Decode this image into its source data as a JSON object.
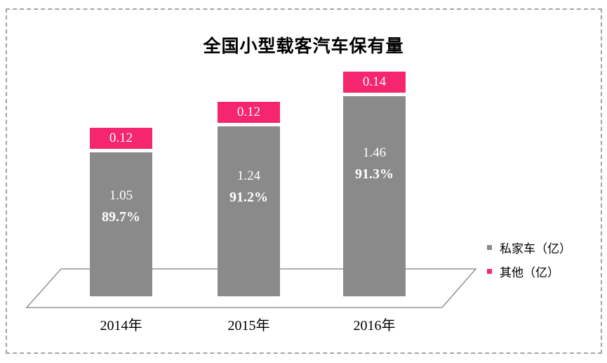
{
  "page": {
    "background": "#ffffff",
    "border_color": "#a3a3a3",
    "floor_line_color": "#7f7f7f"
  },
  "chart_data": {
    "type": "bar",
    "stacked": true,
    "style": "3d-floor",
    "title": "全国小型载客汽车保有量",
    "categories": [
      "2014年",
      "2015年",
      "2016年"
    ],
    "series": [
      {
        "name": "私家车（亿）",
        "color": "#8A8A8A",
        "values": [
          1.05,
          1.24,
          1.46
        ],
        "value_labels": [
          "1.05",
          "1.24",
          "1.46"
        ],
        "percent_labels": [
          "89.7%",
          "91.2%",
          "91.3%"
        ]
      },
      {
        "name": "其他（亿）",
        "color": "#F5266E",
        "values": [
          0.12,
          0.12,
          0.14
        ],
        "value_labels": [
          "0.12",
          "0.12",
          "0.14"
        ]
      }
    ],
    "legend_position": "right",
    "grid": false,
    "axes_visible": false
  }
}
